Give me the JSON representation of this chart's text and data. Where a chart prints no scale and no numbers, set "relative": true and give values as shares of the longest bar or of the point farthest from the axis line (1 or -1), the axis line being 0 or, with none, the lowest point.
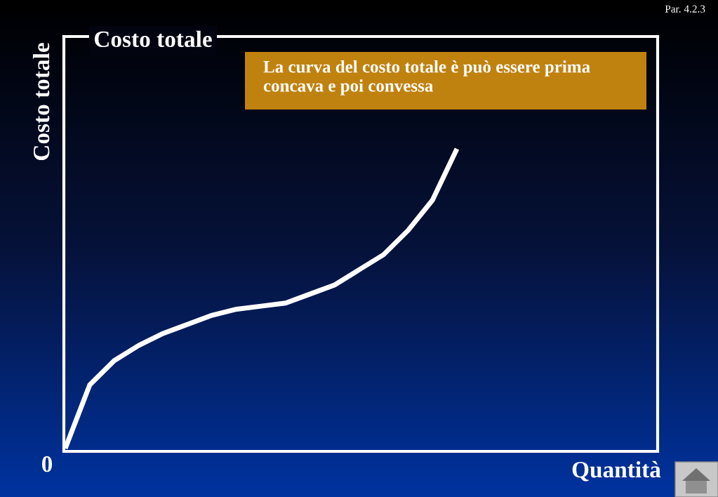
{
  "chart_data": {
    "type": "line",
    "title": "Costo totale",
    "ylabel": "Costo totale",
    "xlabel": "Quantità",
    "relative": true,
    "annotations": [
      "La curva del costo totale è può essere prima concava e poi convessa",
      "0",
      "Par. 4.2.3"
    ],
    "categories": [
      null,
      null,
      null,
      null,
      null,
      null,
      null,
      null,
      null,
      null,
      null,
      null,
      null,
      null,
      null,
      null,
      null
    ],
    "series": [
      {
        "color": "#ffffff",
        "values": [
          0.01,
          0.22,
          0.3,
          0.35,
          0.39,
          0.42,
          0.45,
          0.47,
          0.48,
          0.49,
          0.52,
          0.55,
          0.6,
          0.65,
          0.73,
          0.83,
          1.0
        ]
      }
    ],
    "marker": "none",
    "line_style": "solid"
  }
}
